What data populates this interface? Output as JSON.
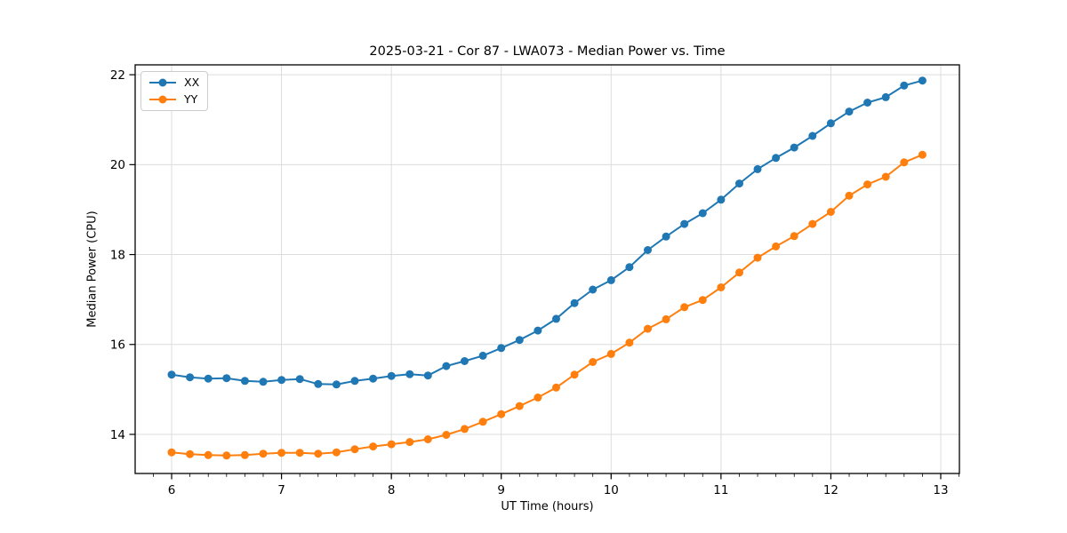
{
  "chart_data": {
    "type": "line",
    "title": "2025-03-21 - Cor 87 - LWA073 - Median Power vs. Time",
    "xlabel": "UT Time (hours)",
    "ylabel": "Median Power (CPU)",
    "xlim": [
      5.668,
      13.17
    ],
    "ylim": [
      13.13,
      22.22
    ],
    "x_ticks": [
      6,
      7,
      8,
      9,
      10,
      11,
      12,
      13
    ],
    "y_ticks": [
      14,
      16,
      18,
      20,
      22
    ],
    "x_minor_step": 0.166667,
    "grid": true,
    "grid_color": "#dcdcdc",
    "legend_position": "upper left",
    "x": [
      6.0,
      6.1667,
      6.3333,
      6.5,
      6.6667,
      6.8333,
      7.0,
      7.1667,
      7.3333,
      7.5,
      7.6667,
      7.8333,
      8.0,
      8.1667,
      8.3333,
      8.5,
      8.6667,
      8.8333,
      9.0,
      9.1667,
      9.3333,
      9.5,
      9.6667,
      9.8333,
      10.0,
      10.1667,
      10.3333,
      10.5,
      10.6667,
      10.8333,
      11.0,
      11.1667,
      11.3333,
      11.5,
      11.6667,
      11.8333,
      12.0,
      12.1667,
      12.3333,
      12.5,
      12.6667,
      12.8333
    ],
    "series": [
      {
        "name": "XX",
        "color": "#1f77b4",
        "values": [
          15.33,
          15.27,
          15.24,
          15.25,
          15.19,
          15.17,
          15.21,
          15.23,
          15.12,
          15.11,
          15.19,
          15.24,
          15.3,
          15.34,
          15.31,
          15.52,
          15.63,
          15.75,
          15.92,
          16.1,
          16.31,
          16.57,
          16.92,
          17.22,
          17.43,
          17.72,
          18.1,
          18.4,
          18.68,
          18.92,
          19.22,
          19.58,
          19.9,
          20.15,
          20.38,
          20.64,
          20.92,
          21.18,
          21.38,
          21.5,
          21.76,
          21.87
        ]
      },
      {
        "name": "YY",
        "color": "#ff7f0e",
        "values": [
          13.6,
          13.56,
          13.54,
          13.53,
          13.54,
          13.57,
          13.59,
          13.59,
          13.57,
          13.6,
          13.67,
          13.73,
          13.78,
          13.83,
          13.89,
          13.99,
          14.12,
          14.28,
          14.45,
          14.63,
          14.82,
          15.04,
          15.33,
          15.61,
          15.79,
          16.04,
          16.35,
          16.56,
          16.83,
          16.99,
          17.27,
          17.6,
          17.93,
          18.18,
          18.41,
          18.68,
          18.95,
          19.31,
          19.56,
          19.73,
          20.05,
          20.22
        ]
      }
    ]
  }
}
